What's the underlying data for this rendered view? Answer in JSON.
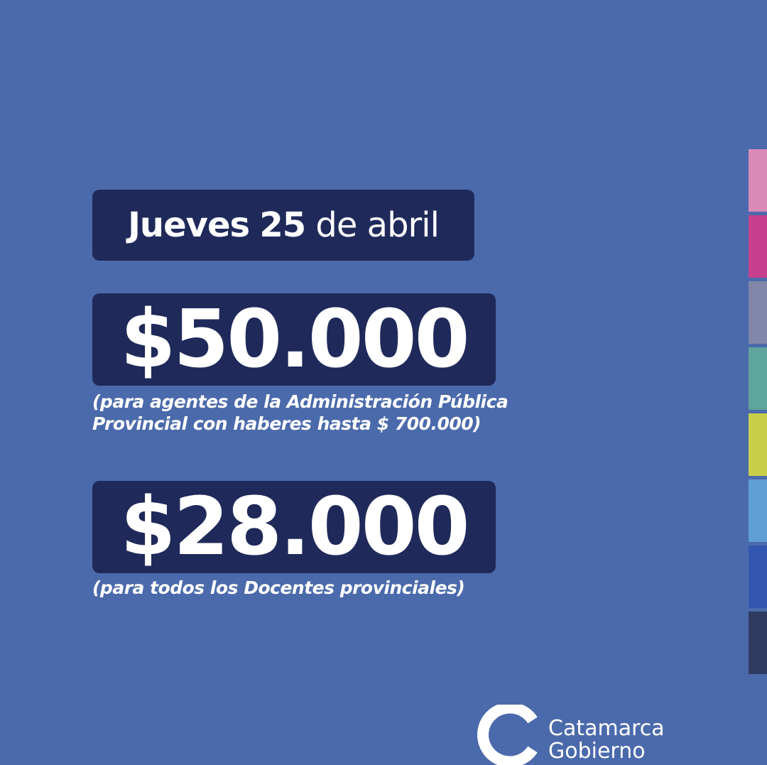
{
  "date": {
    "weekday": "Jueves",
    "day": "25",
    "rest": "de abril"
  },
  "amounts": [
    {
      "amount": "$50.000",
      "note_lines": [
        "(para agentes de la Administración Pública",
        "Provincial con haberes hasta $ 700.000)"
      ]
    },
    {
      "amount": "$28.000",
      "note_lines": [
        "(para todos los Docentes provinciales)"
      ]
    }
  ],
  "logo": {
    "line1": "Catamarca",
    "line2": "Gobierno"
  }
}
